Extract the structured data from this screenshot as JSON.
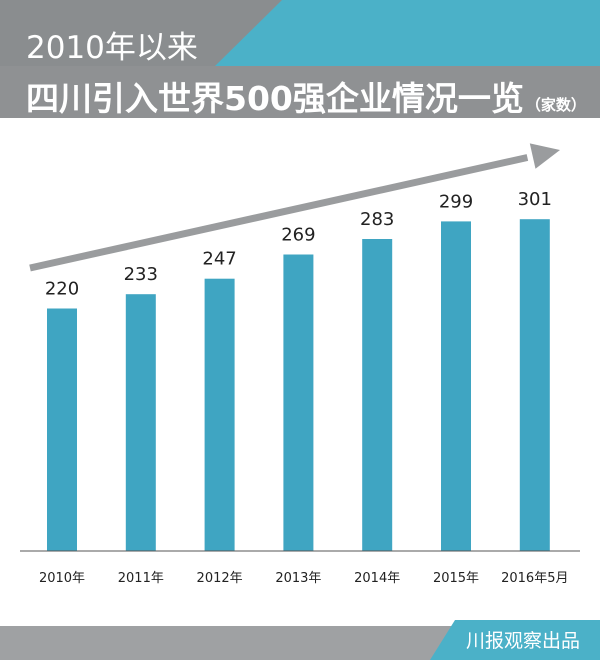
{
  "header": {
    "title_line1": "2010年以来",
    "title_line2": "四川引入世界500强企业情况一览",
    "unit": "（家数）"
  },
  "footer": {
    "credit": "川报观察出品"
  },
  "colors": {
    "header_band": "#4bb1c8",
    "title_bar": "#8a8d8f",
    "bar": "#3fa5c2",
    "arrow": "#9a9c9e",
    "footer_band": "#4bb1c8"
  },
  "chart_data": {
    "type": "bar",
    "title": "四川引入世界500强企业情况一览",
    "ylabel": "（家数）",
    "categories": [
      "2010年",
      "2011年",
      "2012年",
      "2013年",
      "2014年",
      "2015年",
      "2016年5月"
    ],
    "values": [
      220,
      233,
      247,
      269,
      283,
      299,
      301
    ],
    "data_labels": [
      "220",
      "233",
      "247",
      "269",
      "283",
      "299",
      "301"
    ],
    "trend_arrow": "increasing",
    "grid": false,
    "legend": "none"
  }
}
